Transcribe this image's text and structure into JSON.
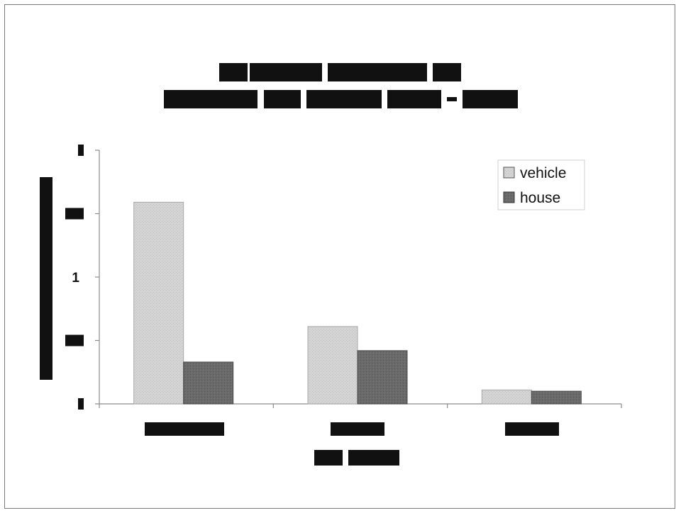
{
  "chart_data": {
    "type": "bar",
    "title": "",
    "xlabel": "",
    "ylabel": "",
    "categories": [
      "",
      "",
      ""
    ],
    "series": [
      {
        "name": "vehicle",
        "values": [
          1.59,
          0.61,
          0.11
        ],
        "color": "#cfcfcf",
        "pattern": "light-stipple"
      },
      {
        "name": "house",
        "values": [
          0.33,
          0.42,
          0.1
        ],
        "color": "#6e6e6e",
        "pattern": "dark-stipple"
      }
    ],
    "ylim": [
      0,
      2
    ],
    "yticks": [
      0,
      0.5,
      1,
      1.5,
      2
    ],
    "ytick_labels": [
      "",
      "",
      "1",
      "",
      ""
    ],
    "grid": false,
    "legend_placement": "top-right"
  }
}
